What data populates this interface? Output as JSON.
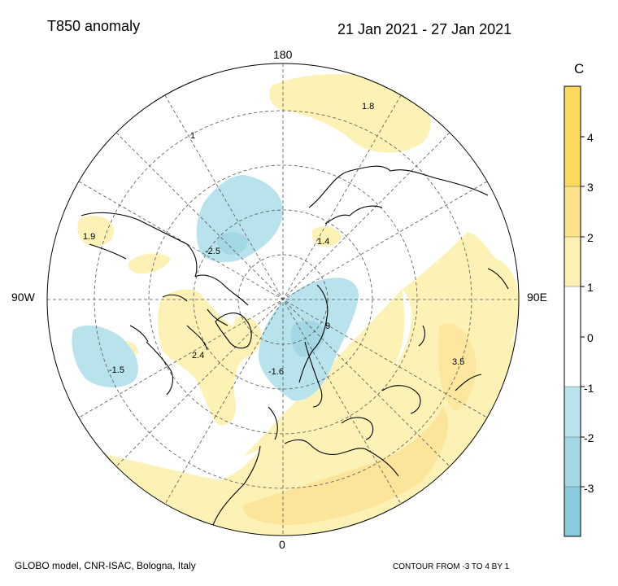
{
  "title": "T850 anomaly",
  "period": "21 Jan 2021 - 27 Jan 2021",
  "footer": {
    "left": "GLOBO model, CNR-ISAC, Bologna, Italy",
    "right": "CONTOUR FROM -3 TO 4 BY 1"
  },
  "longitude_labels": {
    "top": "180",
    "bottom": "0",
    "left": "90W",
    "right": "90E"
  },
  "colorbar": {
    "unit": "C",
    "ticks": [
      "4",
      "3",
      "2",
      "1",
      "0",
      "-1",
      "-2",
      "-3"
    ],
    "bands": [
      {
        "range": "3 to 4+",
        "color": "#fdd95f"
      },
      {
        "range": "2 to 3",
        "color": "#fde48a"
      },
      {
        "range": "1 to 2",
        "color": "#fdf0b4"
      },
      {
        "range": "-1 to 1",
        "color": "#ffffff"
      },
      {
        "range": "-2 to -1",
        "color": "#b8e3ec"
      },
      {
        "range": "-3 to -2",
        "color": "#a2d8e4"
      },
      {
        "range": "-4 to -3",
        "color": "#88ccdc"
      }
    ]
  },
  "value_labels": [
    {
      "id": "a",
      "text": "1.8"
    },
    {
      "id": "b",
      "text": "1"
    },
    {
      "id": "c",
      "text": "1.9"
    },
    {
      "id": "d",
      "text": "-2.5"
    },
    {
      "id": "e",
      "text": "1.4"
    },
    {
      "id": "f",
      "text": "-1.5"
    },
    {
      "id": "g",
      "text": "2.4"
    },
    {
      "id": "h",
      "text": "-1.6"
    },
    {
      "id": "i",
      "text": "9"
    },
    {
      "id": "j",
      "text": "3.5"
    }
  ],
  "colors": {
    "warm_light": "#fdf2b6",
    "warm_mid": "#fce49a",
    "cold_light": "#b8e3ec",
    "cold_mid": "#a3d7e3"
  }
}
